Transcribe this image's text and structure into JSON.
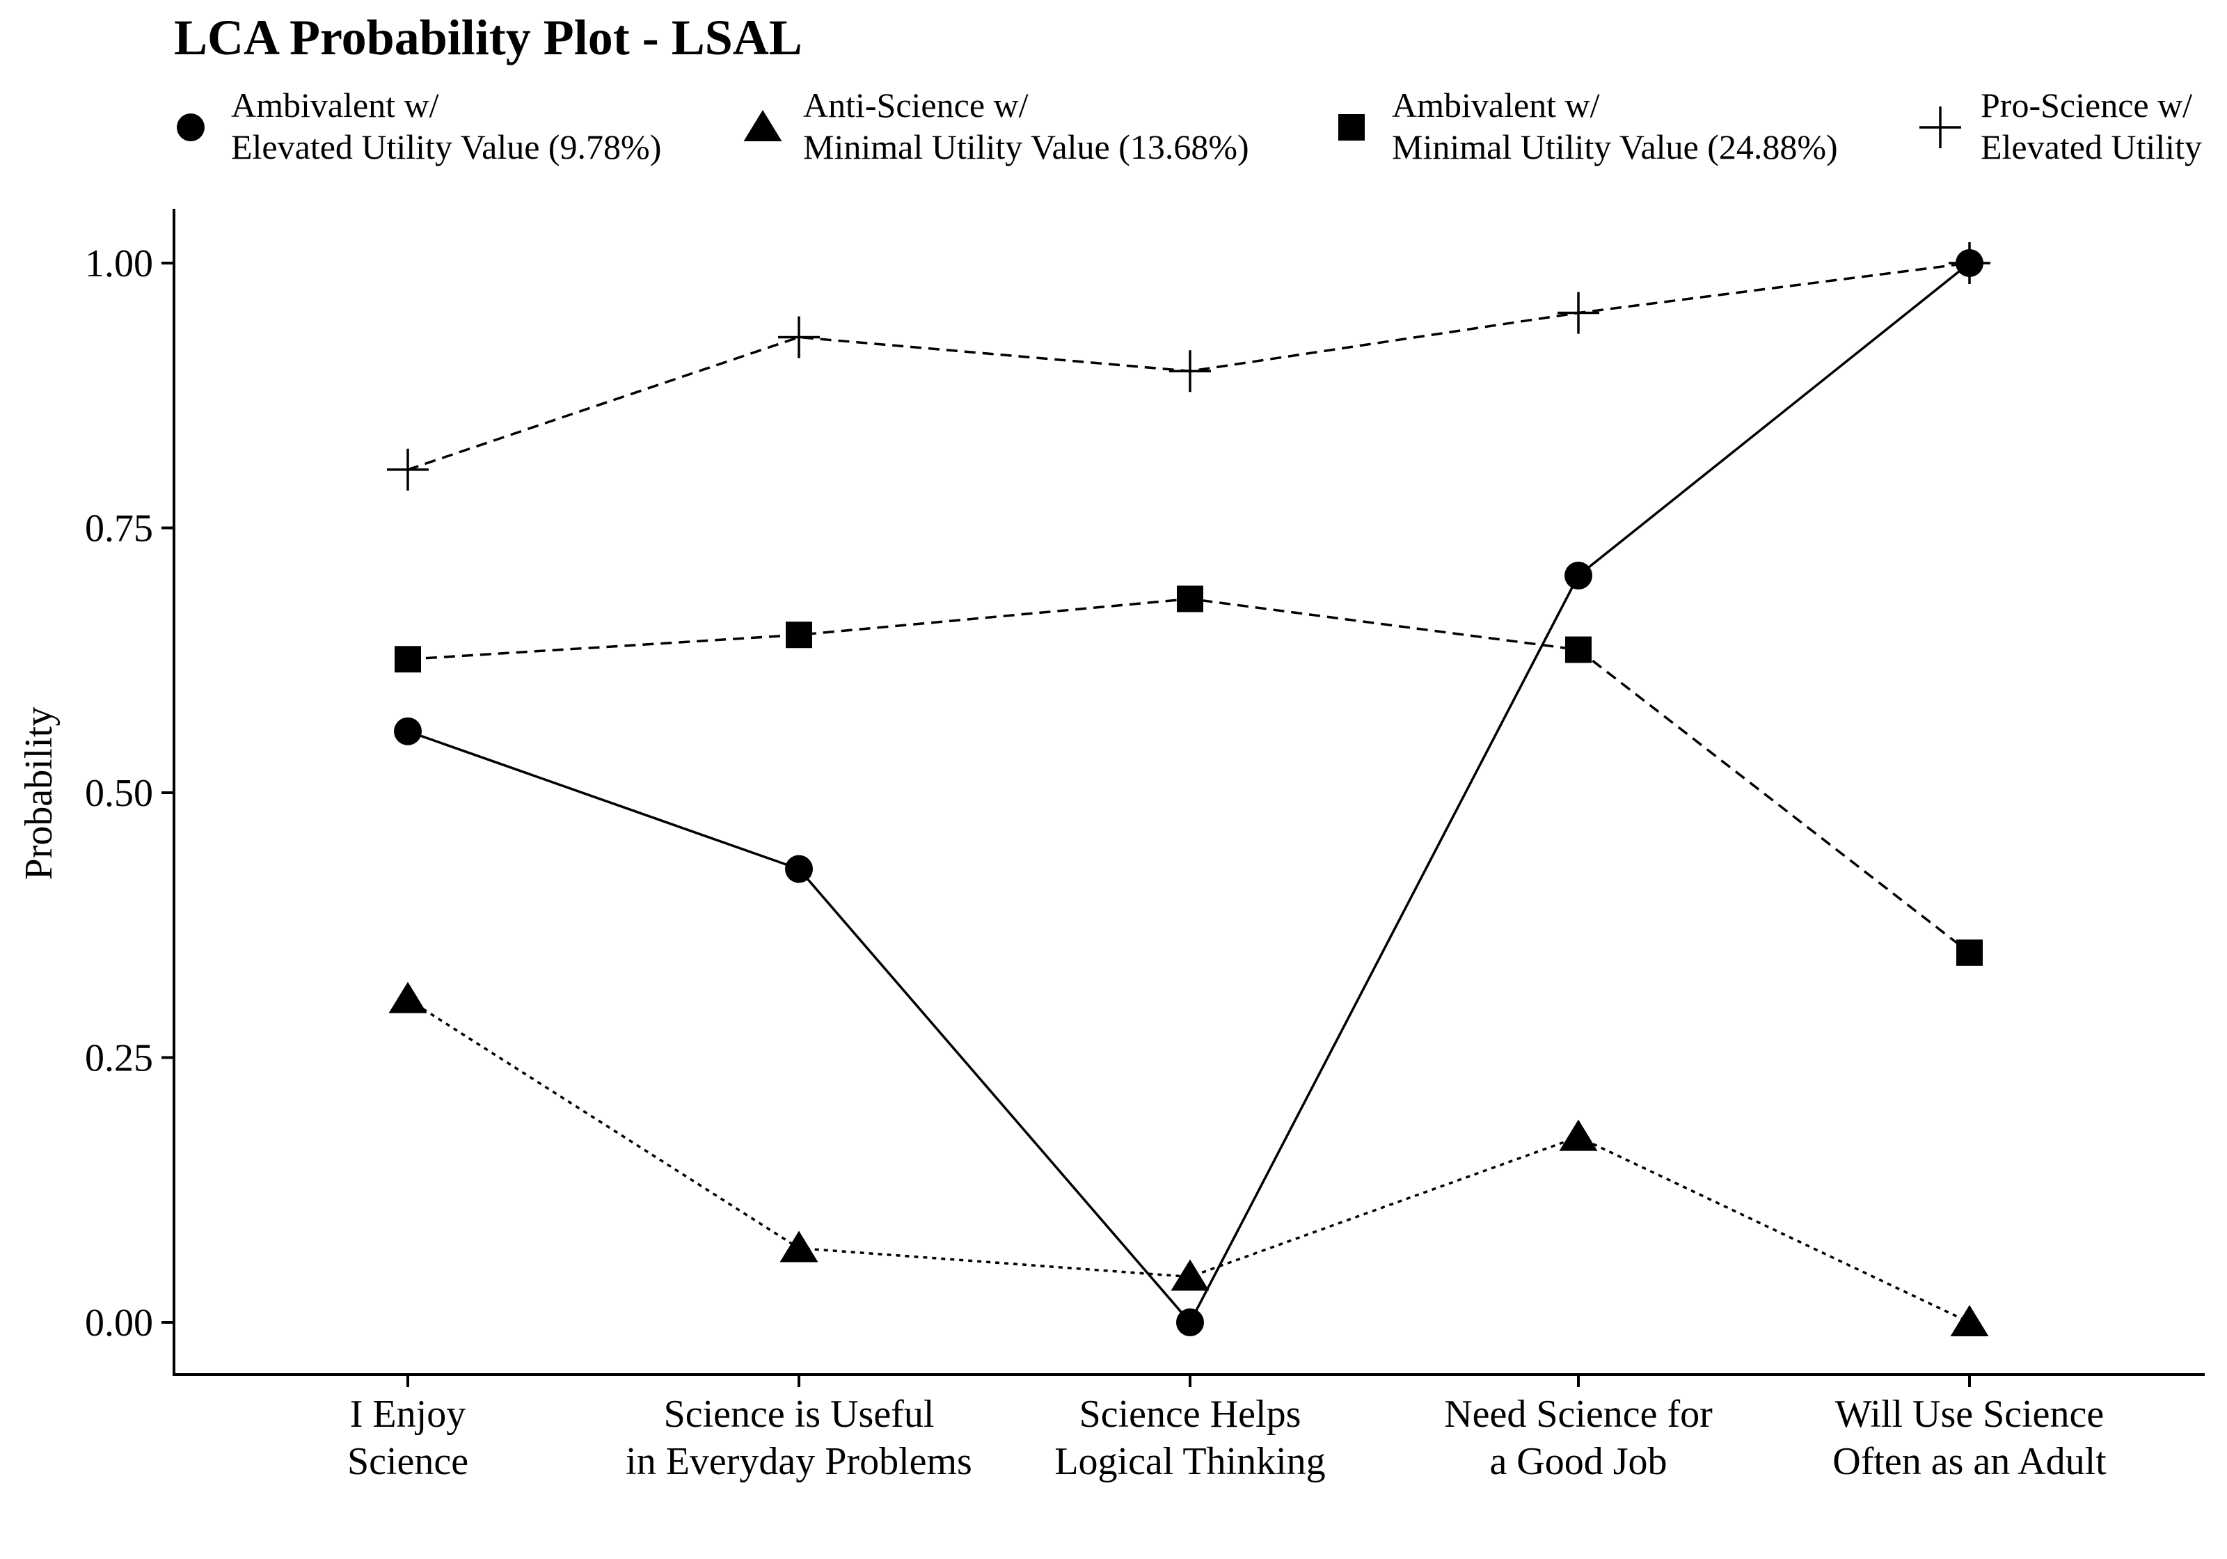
{
  "chart_data": {
    "type": "line",
    "title": "LCA Probability Plot - LSAL",
    "xlabel": "",
    "ylabel": "Probability",
    "ylim": [
      -0.05,
      1.05
    ],
    "yticks": [
      0,
      0.25,
      0.5,
      0.75,
      1.0
    ],
    "ytick_labels": [
      "0.00",
      "0.25",
      "0.50",
      "0.75",
      "1.00"
    ],
    "grid": false,
    "legend_position": "top",
    "categories": [
      [
        "I Enjoy",
        "Science"
      ],
      [
        "Science is Useful",
        "in Everyday Problems"
      ],
      [
        "Science Helps",
        "Logical Thinking"
      ],
      [
        "Need Science for",
        "a Good Job"
      ],
      [
        "Will Use Science",
        "Often as an Adult"
      ]
    ],
    "series": [
      {
        "name_lines": [
          "Ambivalent w/",
          "Elevated Utility Value (9.78%)"
        ],
        "marker": "circle",
        "line": "solid",
        "color": "#000000",
        "values": [
          0.558,
          0.428,
          0.0,
          0.705,
          1.0
        ]
      },
      {
        "name_lines": [
          "Anti-Science w/",
          "Minimal Utility Value (13.68%)"
        ],
        "marker": "triangle",
        "line": "dotted",
        "color": "#000000",
        "values": [
          0.305,
          0.07,
          0.043,
          0.175,
          0.0
        ]
      },
      {
        "name_lines": [
          "Ambivalent w/",
          "Minimal Utility Value (24.88%)"
        ],
        "marker": "square",
        "line": "dashed",
        "color": "#000000",
        "values": [
          0.626,
          0.649,
          0.683,
          0.635,
          0.349
        ]
      },
      {
        "name_lines": [
          "Pro-Science w/",
          "Elevated Utility"
        ],
        "marker": "plus",
        "line": "dashed",
        "color": "#000000",
        "values": [
          0.805,
          0.93,
          0.898,
          0.953,
          1.0
        ]
      }
    ]
  }
}
